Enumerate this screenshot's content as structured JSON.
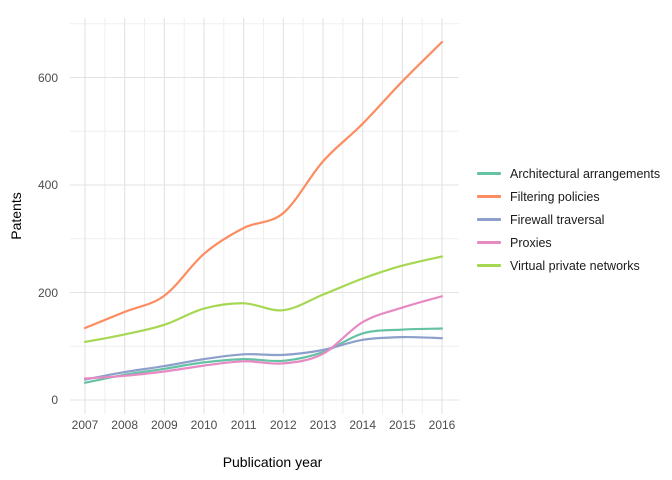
{
  "chart_data": {
    "type": "line",
    "title": "",
    "xlabel": "Publication year",
    "ylabel": "Patents",
    "x": [
      2007,
      2008,
      2009,
      2010,
      2011,
      2012,
      2013,
      2014,
      2015,
      2016
    ],
    "x_tick_labels": [
      "2007",
      "2008",
      "2009",
      "2010",
      "2011",
      "2012",
      "2013",
      "2014",
      "2015",
      "2016"
    ],
    "y_tick_values": [
      0,
      200,
      400,
      600
    ],
    "y_tick_labels": [
      "0",
      "200",
      "400",
      "600"
    ],
    "xlim": [
      2006.62,
      2016.43
    ],
    "ylim": [
      -25,
      711
    ],
    "grid": "major and minor gridlines on, no axis lines, white panel",
    "legend_position": "right",
    "series": [
      {
        "name": "Architectural arrangements",
        "color": "#66C2A5",
        "values": [
          32,
          47,
          58,
          70,
          76,
          73,
          89,
          124,
          131,
          133
        ]
      },
      {
        "name": "Filtering policies",
        "color": "#FC8D62",
        "values": [
          134,
          164,
          194,
          272,
          320,
          348,
          444,
          514,
          593,
          666
        ]
      },
      {
        "name": "Firewall traversal",
        "color": "#8DA0CB",
        "values": [
          38,
          52,
          63,
          76,
          85,
          84,
          93,
          112,
          117,
          115
        ]
      },
      {
        "name": "Proxies",
        "color": "#E78AC3",
        "values": [
          40,
          45,
          53,
          64,
          72,
          68,
          86,
          145,
          172,
          193
        ]
      },
      {
        "name": "Virtual private networks",
        "color": "#A6D854",
        "values": [
          108,
          122,
          140,
          170,
          180,
          167,
          196,
          226,
          250,
          267
        ]
      }
    ]
  },
  "colors": {
    "background": "#FFFFFF",
    "grid_major": "#E3E3E3",
    "grid_minor": "#EFEFEF",
    "tick_label": "#4D4D4D",
    "axis_title": "#000000"
  }
}
